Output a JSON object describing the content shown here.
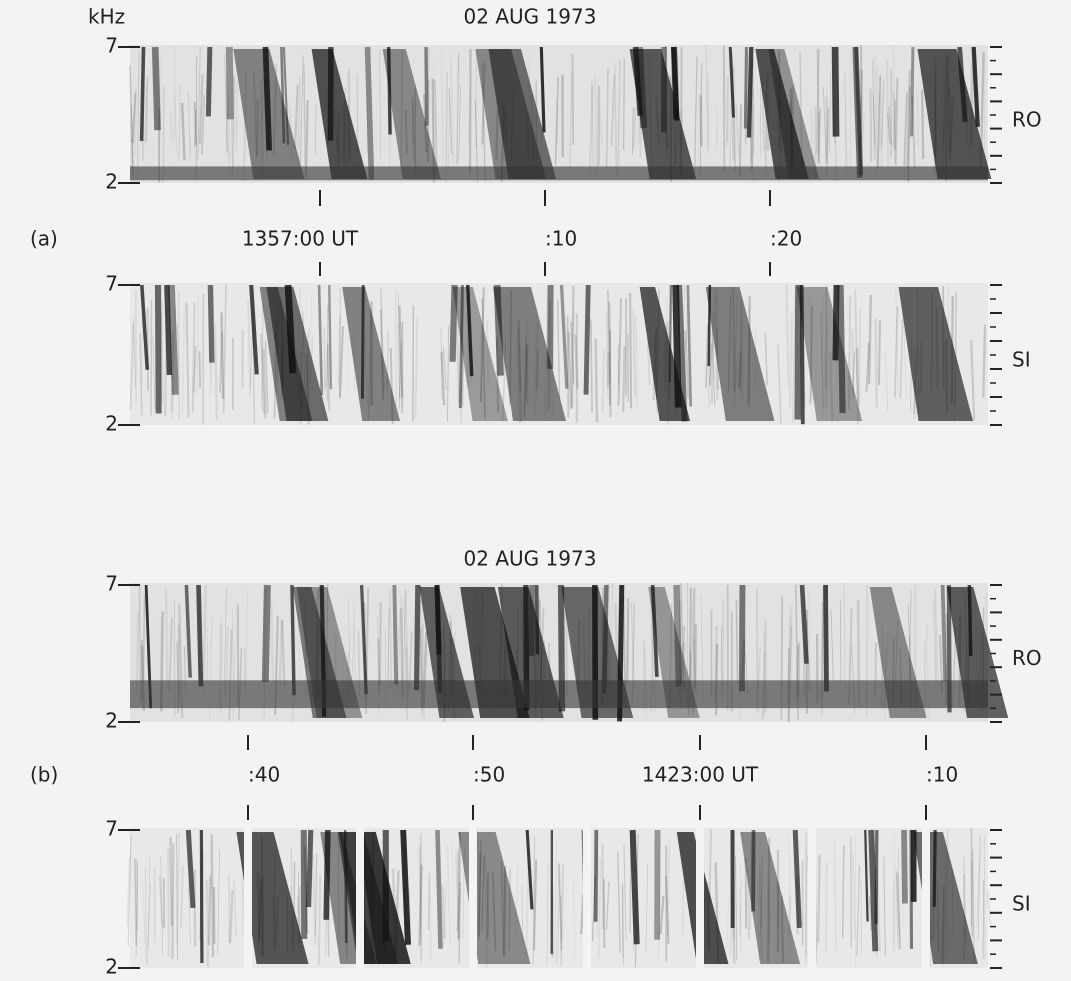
{
  "unit": "kHz",
  "panels": [
    {
      "label": "(a)",
      "title": "02 AUG 1973",
      "time_labels": [
        "1357:00 UT",
        ":10",
        ":20"
      ],
      "strips": [
        {
          "station": "RO",
          "freq_top": "7",
          "freq_bottom": "2"
        },
        {
          "station": "SI",
          "freq_top": "7",
          "freq_bottom": "2"
        }
      ]
    },
    {
      "label": "(b)",
      "title": "02 AUG 1973",
      "time_labels": [
        ":40",
        ":50",
        "1423:00 UT",
        ":10"
      ],
      "strips": [
        {
          "station": "RO",
          "freq_top": "7",
          "freq_bottom": "2"
        },
        {
          "station": "SI",
          "freq_top": "7",
          "freq_bottom": "2"
        }
      ]
    }
  ]
}
